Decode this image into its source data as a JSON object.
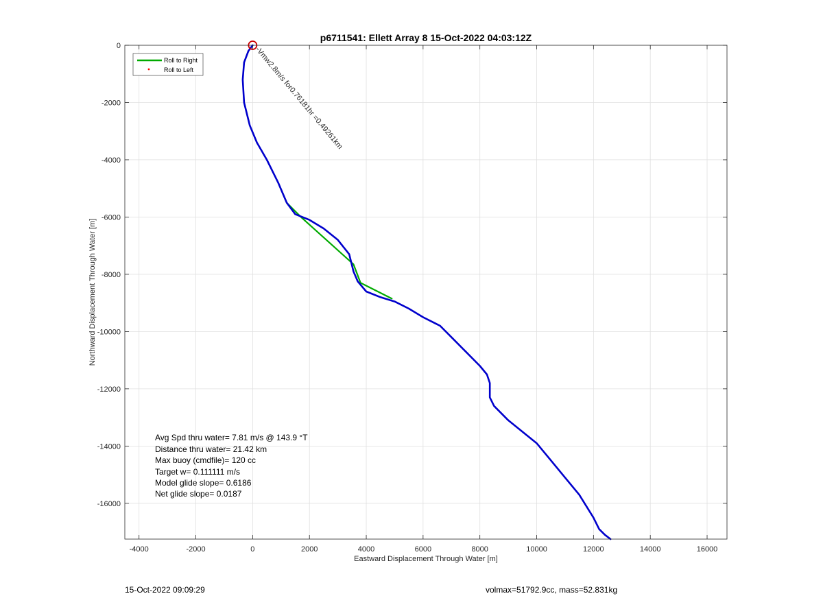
{
  "chart_data": {
    "type": "line",
    "title": "p6711541: Ellett Array 8 15-Oct-2022 04:03:12Z",
    "xlabel": "Eastward Displacement Through Water [m]",
    "ylabel": "Northward Displacement Through Water [m]",
    "xlim": [
      -4500,
      16700
    ],
    "ylim": [
      -17250,
      0
    ],
    "xticks": [
      -4000,
      -2000,
      0,
      2000,
      4000,
      6000,
      8000,
      10000,
      12000,
      14000,
      16000
    ],
    "yticks": [
      0,
      -2000,
      -4000,
      -6000,
      -8000,
      -10000,
      -12000,
      -14000,
      -16000
    ],
    "grid": true,
    "legend": {
      "placement": "top-left",
      "entries": [
        {
          "label": "Roll to Right",
          "color": "#00aa00",
          "style": "line"
        },
        {
          "label": "Roll to Left",
          "color": "#ff0000",
          "style": "dot"
        }
      ]
    },
    "series": [
      {
        "color": "#0000cc",
        "x": [
          0,
          -150,
          -300,
          -350,
          -300,
          -100,
          150,
          500,
          900,
          1200,
          1500,
          2000,
          2500,
          3000,
          3400,
          3550,
          3700,
          4000,
          4500,
          5000,
          5500,
          6000,
          6600,
          7000,
          7500,
          8000,
          8250,
          8350,
          8350,
          8500,
          9000,
          9500,
          10000,
          10500,
          11000,
          11500,
          12000,
          12200,
          12400,
          12600
        ],
        "y": [
          0,
          -200,
          -600,
          -1200,
          -2000,
          -2800,
          -3400,
          -4000,
          -4800,
          -5500,
          -5900,
          -6100,
          -6400,
          -6800,
          -7300,
          -7900,
          -8250,
          -8600,
          -8800,
          -8950,
          -9200,
          -9500,
          -9800,
          -10200,
          -10700,
          -11200,
          -11500,
          -11800,
          -12300,
          -12600,
          -13100,
          -13500,
          -13900,
          -14500,
          -15100,
          -15700,
          -16500,
          -16900,
          -17100,
          -17250
        ]
      },
      {
        "color": "#00aa00",
        "x": [
          900,
          1200,
          1700,
          3550,
          3800,
          4900
        ],
        "y": [
          -4800,
          -5500,
          -6000,
          -7650,
          -8300,
          -8850
        ]
      }
    ],
    "marker": {
      "x": 0,
      "y": 0,
      "color": "#cc0000"
    },
    "annotation": {
      "text": "-Vmw2.8m/s for0.76181hr =0.49261km",
      "x": 0,
      "y": -50,
      "rotation": 50
    }
  },
  "stats": [
    "Avg Spd thru water=  7.81 m/s @ 143.9 °T",
    "Distance thru water= 21.42 km",
    "Max buoy (cmdfile)= 120 cc",
    "Target w= 0.111111 m/s",
    "Model glide slope= 0.6186",
    "Net glide slope= 0.0187"
  ],
  "footer": {
    "left": "15-Oct-2022 09:09:29",
    "right": "volmax=51792.9cc, mass=52.831kg"
  }
}
